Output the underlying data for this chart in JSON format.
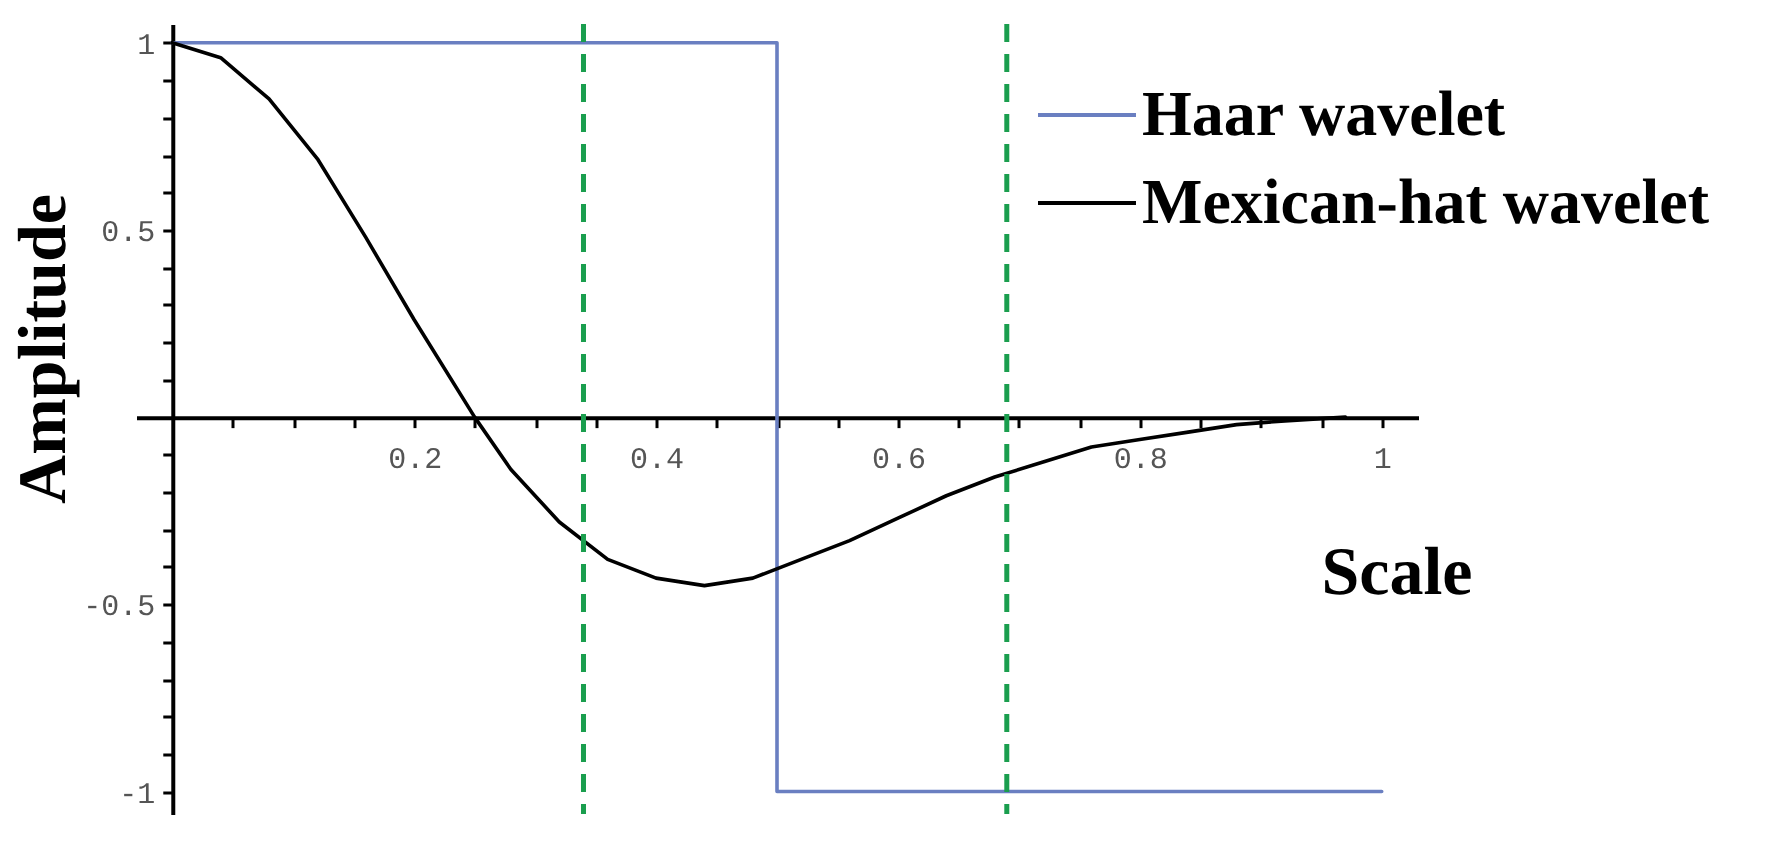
{
  "chart_data": {
    "type": "line",
    "xlabel": "Scale",
    "ylabel": "Amplitude",
    "xlim": [
      -0.03,
      1.03
    ],
    "ylim": [
      -1.06,
      1.05
    ],
    "xticks": [
      {
        "value": 0.05,
        "label": null
      },
      {
        "value": 0.1,
        "label": null
      },
      {
        "value": 0.15,
        "label": null
      },
      0.2,
      {
        "value": 0.25,
        "label": null
      },
      {
        "value": 0.3,
        "label": null
      },
      {
        "value": 0.35,
        "label": null
      },
      0.4,
      {
        "value": 0.45,
        "label": null
      },
      {
        "value": 0.5,
        "label": null
      },
      {
        "value": 0.55,
        "label": null
      },
      0.6,
      {
        "value": 0.65,
        "label": null
      },
      {
        "value": 0.7,
        "label": null
      },
      {
        "value": 0.75,
        "label": null
      },
      0.8,
      {
        "value": 0.85,
        "label": null
      },
      {
        "value": 0.9,
        "label": null
      },
      {
        "value": 0.95,
        "label": null
      },
      1
    ],
    "yticks": [
      -1,
      {
        "value": -0.9,
        "label": null
      },
      {
        "value": -0.8,
        "label": null
      },
      {
        "value": -0.7,
        "label": null
      },
      {
        "value": -0.6,
        "label": null
      },
      -0.5,
      {
        "value": -0.4,
        "label": null
      },
      {
        "value": -0.3,
        "label": null
      },
      {
        "value": -0.2,
        "label": null
      },
      {
        "value": -0.1,
        "label": null
      },
      {
        "value": 0.1,
        "label": null
      },
      {
        "value": 0.2,
        "label": null
      },
      {
        "value": 0.3,
        "label": null
      },
      {
        "value": 0.4,
        "label": null
      },
      0.5,
      {
        "value": 0.6,
        "label": null
      },
      {
        "value": 0.7,
        "label": null
      },
      {
        "value": 0.8,
        "label": null
      },
      {
        "value": 0.9,
        "label": null
      },
      1
    ],
    "series": [
      {
        "name": "Haar wavelet",
        "color": "#6a7fc1",
        "x": [
          0,
          0.5,
          0.5,
          1
        ],
        "values": [
          1,
          1,
          -1,
          -1
        ]
      },
      {
        "name": "Mexican-hat wavelet",
        "color": "#000000",
        "x": [
          0,
          0.04,
          0.08,
          0.12,
          0.16,
          0.2,
          0.25,
          0.28,
          0.32,
          0.36,
          0.4,
          0.44,
          0.48,
          0.52,
          0.56,
          0.6,
          0.64,
          0.68,
          0.72,
          0.76,
          0.8,
          0.84,
          0.88,
          0.92,
          0.97
        ],
        "values": [
          1,
          0.96,
          0.85,
          0.69,
          0.48,
          0.26,
          0,
          -0.14,
          -0.28,
          -0.38,
          -0.43,
          -0.45,
          -0.43,
          -0.38,
          -0.33,
          -0.27,
          -0.21,
          -0.16,
          -0.12,
          -0.08,
          -0.06,
          -0.04,
          -0.02,
          -0.01,
          0
        ]
      }
    ],
    "ref_lines": [
      {
        "axis": "x",
        "value": 0.34,
        "color": "#1a9e4e",
        "line_style": "dashed"
      },
      {
        "axis": "x",
        "value": 0.69,
        "color": "#1a9e4e",
        "line_style": "dashed"
      }
    ],
    "legend": "top right"
  }
}
